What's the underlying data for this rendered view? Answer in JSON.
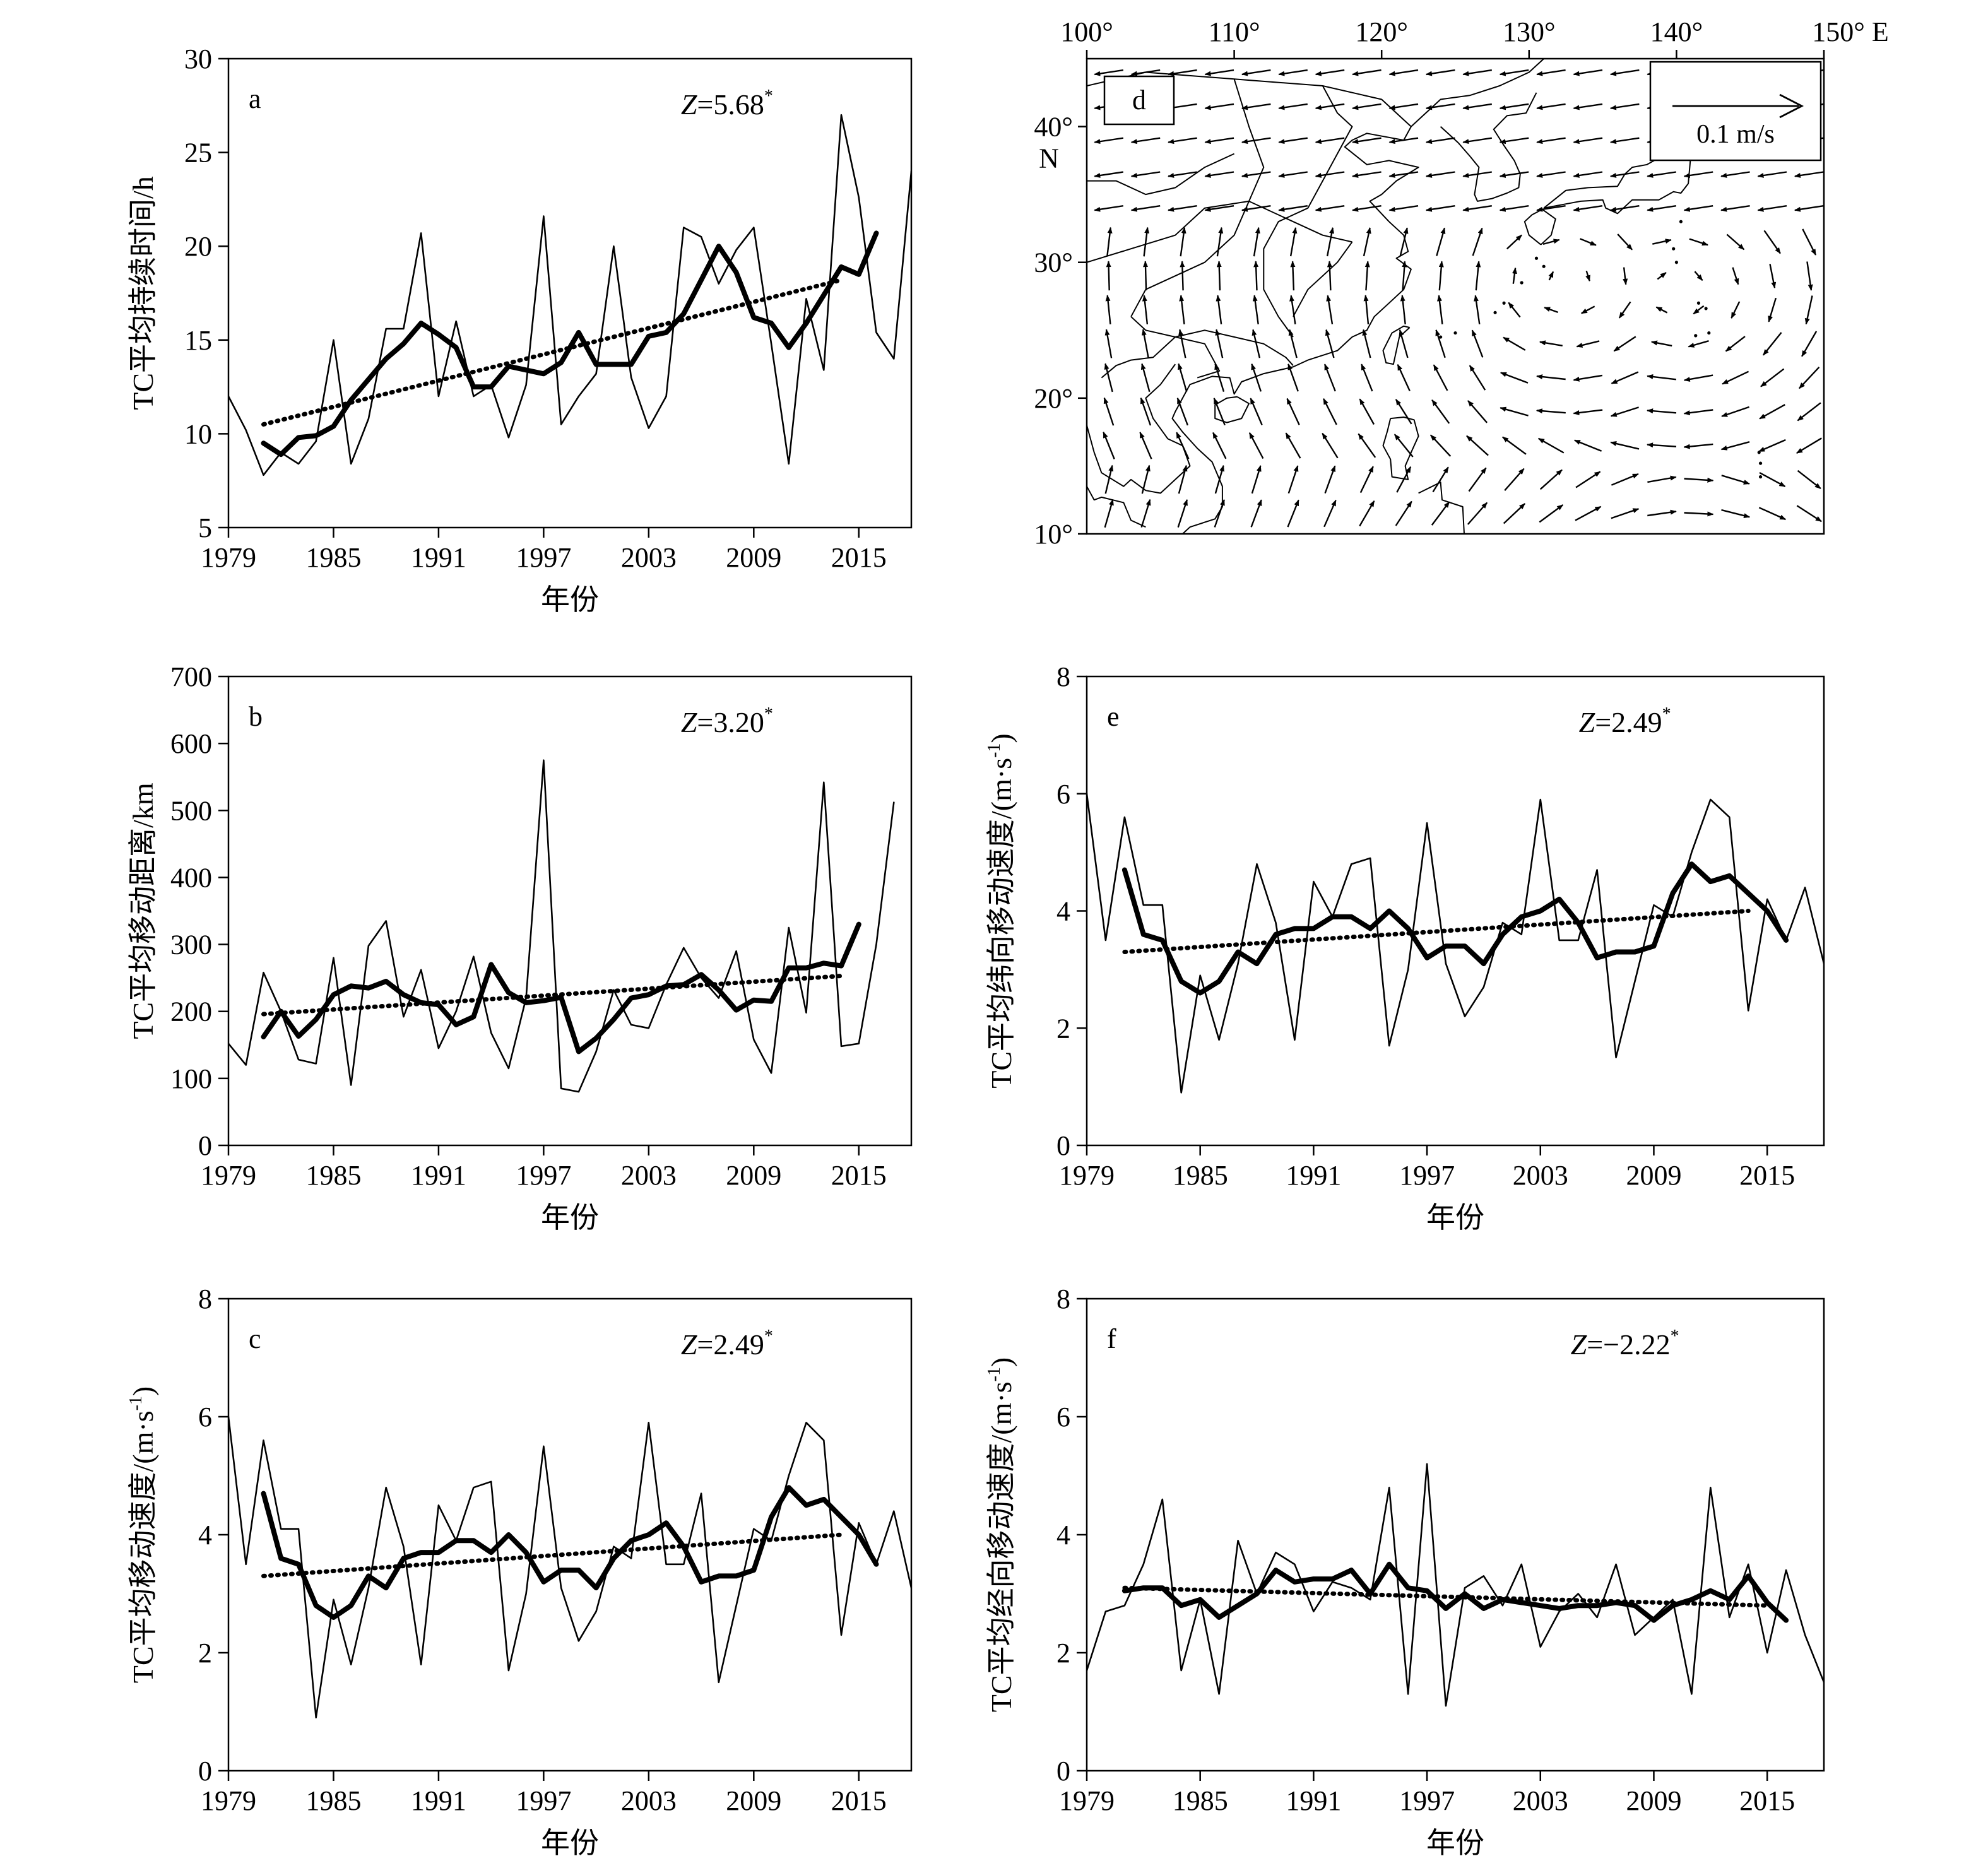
{
  "xlabel": "年份",
  "panel_d": {
    "label": "d",
    "lon_ticks": [
      "100°",
      "110°",
      "120°",
      "130°",
      "140°",
      "150° E"
    ],
    "lat_ticks": [
      "40°",
      "30°",
      "20°",
      "10°"
    ],
    "lat_unit": "N",
    "reference_vector_label": "0.1 m/s",
    "reference_vector_value": 0.1,
    "lon_range": [
      100,
      150
    ],
    "lat_range": [
      10,
      45
    ]
  },
  "chart_data": [
    {
      "type": "line",
      "panel": "a",
      "annotation_var": "Z",
      "annotation_value": "=5.68",
      "annotation_sup": "*",
      "ylabel": "TC平均持续时间/h",
      "xlabel": "年份",
      "ylim": [
        5,
        30
      ],
      "yticks": [
        5,
        10,
        15,
        20,
        25,
        30
      ],
      "xlim": [
        1979,
        2018
      ],
      "xticks": [
        1979,
        1985,
        1991,
        1997,
        2003,
        2009,
        2015
      ],
      "series": [
        {
          "style": "thin",
          "x_start": 1979,
          "values": [
            12.0,
            10.2,
            7.8,
            9.0,
            8.4,
            9.6,
            15.0,
            8.4,
            10.8,
            15.6,
            15.6,
            20.7,
            12.0,
            16.0,
            12.0,
            12.6,
            9.8,
            12.6,
            21.6,
            10.5,
            12.0,
            13.2,
            20.0,
            13.0,
            10.3,
            12.0,
            21.0,
            20.5,
            18.0,
            19.8,
            21.0,
            14.8,
            8.4,
            17.2,
            13.4,
            27.0,
            22.6,
            15.4,
            14.0,
            24.0
          ]
        },
        {
          "style": "thick",
          "x_start": 1981,
          "values": [
            9.5,
            8.9,
            9.8,
            9.9,
            10.4,
            11.8,
            12.9,
            14.0,
            14.8,
            15.9,
            15.3,
            14.6,
            12.5,
            12.5,
            13.6,
            13.4,
            13.2,
            13.8,
            15.4,
            13.7,
            13.7,
            13.7,
            15.2,
            15.4,
            16.4,
            18.2,
            20.0,
            18.6,
            16.2,
            15.9,
            14.6,
            15.9,
            17.4,
            18.9,
            18.5,
            20.7
          ]
        },
        {
          "style": "dotted-trend",
          "x": [
            1981,
            2014
          ],
          "values": [
            10.5,
            18.2
          ]
        }
      ]
    },
    {
      "type": "line",
      "panel": "b",
      "annotation_var": "Z",
      "annotation_value": "=3.20",
      "annotation_sup": "*",
      "ylabel": "TC平均移动距离/km",
      "xlabel": "年份",
      "ylim": [
        0,
        700
      ],
      "yticks": [
        0,
        100,
        200,
        300,
        400,
        500,
        600,
        700
      ],
      "xlim": [
        1979,
        2018
      ],
      "xticks": [
        1979,
        1985,
        1991,
        1997,
        2003,
        2009,
        2015
      ],
      "series": [
        {
          "style": "thin",
          "x_start": 1979,
          "values": [
            152,
            120,
            258,
            200,
            128,
            122,
            280,
            90,
            298,
            335,
            192,
            262,
            145,
            200,
            282,
            168,
            115,
            220,
            575,
            85,
            80,
            140,
            232,
            180,
            175,
            240,
            295,
            250,
            220,
            290,
            158,
            108,
            325,
            198,
            542,
            148,
            152,
            300,
            512
          ]
        },
        {
          "style": "thick",
          "x_start": 1981,
          "values": [
            162,
            200,
            163,
            188,
            225,
            238,
            235,
            245,
            225,
            213,
            210,
            180,
            192,
            270,
            228,
            213,
            216,
            221,
            140,
            160,
            188,
            220,
            225,
            238,
            240,
            255,
            232,
            202,
            217,
            215,
            265,
            265,
            272,
            268,
            330
          ]
        },
        {
          "style": "dotted-trend",
          "x": [
            1981,
            2014
          ],
          "values": [
            196,
            253
          ]
        }
      ]
    },
    {
      "type": "line",
      "panel": "c",
      "annotation_var": "Z",
      "annotation_value": "=2.49",
      "annotation_sup": "*",
      "ylabel": "TC平均移动速度/(m·s",
      "ylabel_sup": "-1",
      "ylabel_end": ")",
      "xlabel": "年份",
      "ylim": [
        0,
        8
      ],
      "yticks": [
        0,
        2,
        4,
        6,
        8
      ],
      "xlim": [
        1979,
        2018
      ],
      "xticks": [
        1979,
        1985,
        1991,
        1997,
        2003,
        2009,
        2015
      ],
      "series": [
        {
          "style": "thin",
          "x_start": 1979,
          "values": [
            6.0,
            3.5,
            5.6,
            4.1,
            4.1,
            0.9,
            2.9,
            1.8,
            3.1,
            4.8,
            3.8,
            1.8,
            4.5,
            3.9,
            4.8,
            4.9,
            1.7,
            3.0,
            5.5,
            3.1,
            2.2,
            2.7,
            3.8,
            3.6,
            5.9,
            3.5,
            3.5,
            4.7,
            1.5,
            2.8,
            4.1,
            3.9,
            5.0,
            5.9,
            5.6,
            2.3,
            4.2,
            3.5,
            4.4,
            3.1
          ]
        },
        {
          "style": "thick",
          "x_start": 1981,
          "values": [
            4.7,
            3.6,
            3.5,
            2.8,
            2.6,
            2.8,
            3.3,
            3.1,
            3.6,
            3.7,
            3.7,
            3.9,
            3.9,
            3.7,
            4.0,
            3.7,
            3.2,
            3.4,
            3.4,
            3.1,
            3.6,
            3.9,
            4.0,
            4.2,
            3.8,
            3.2,
            3.3,
            3.3,
            3.4,
            4.3,
            4.8,
            4.5,
            4.6,
            4.3,
            4.0,
            3.5
          ]
        },
        {
          "style": "dotted-trend",
          "x": [
            1981,
            2014
          ],
          "values": [
            3.3,
            4.0
          ]
        }
      ]
    },
    {
      "type": "line",
      "panel": "e",
      "annotation_var": "Z",
      "annotation_value": "=2.49",
      "annotation_sup": "*",
      "ylabel": "TC平均纬向移动速度/(m·s",
      "ylabel_sup": "-1",
      "ylabel_end": ")",
      "xlabel": "年份",
      "ylim": [
        0,
        8
      ],
      "yticks": [
        0,
        2,
        4,
        6,
        8
      ],
      "xlim": [
        1979,
        2018
      ],
      "xticks": [
        1979,
        1985,
        1991,
        1997,
        2003,
        2009,
        2015
      ],
      "series": [
        {
          "style": "thin",
          "x_start": 1979,
          "values": [
            6.0,
            3.5,
            5.6,
            4.1,
            4.1,
            0.9,
            2.9,
            1.8,
            3.1,
            4.8,
            3.8,
            1.8,
            4.5,
            3.9,
            4.8,
            4.9,
            1.7,
            3.0,
            5.5,
            3.1,
            2.2,
            2.7,
            3.8,
            3.6,
            5.9,
            3.5,
            3.5,
            4.7,
            1.5,
            2.8,
            4.1,
            3.9,
            5.0,
            5.9,
            5.6,
            2.3,
            4.2,
            3.5,
            4.4,
            3.1
          ]
        },
        {
          "style": "thick",
          "x_start": 1981,
          "values": [
            4.7,
            3.6,
            3.5,
            2.8,
            2.6,
            2.8,
            3.3,
            3.1,
            3.6,
            3.7,
            3.7,
            3.9,
            3.9,
            3.7,
            4.0,
            3.7,
            3.2,
            3.4,
            3.4,
            3.1,
            3.6,
            3.9,
            4.0,
            4.2,
            3.8,
            3.2,
            3.3,
            3.3,
            3.4,
            4.3,
            4.8,
            4.5,
            4.6,
            4.3,
            4.0,
            3.5
          ]
        },
        {
          "style": "dotted-trend",
          "x": [
            1981,
            2014
          ],
          "values": [
            3.3,
            4.0
          ]
        }
      ]
    },
    {
      "type": "line",
      "panel": "f",
      "annotation_var": "Z",
      "annotation_value": "=−2.22",
      "annotation_sup": "*",
      "ylabel": "TC平均经向移动速度/(m·s",
      "ylabel_sup": "-1",
      "ylabel_end": ")",
      "xlabel": "年份",
      "ylim": [
        0,
        8
      ],
      "yticks": [
        0,
        2,
        4,
        6,
        8
      ],
      "xlim": [
        1979,
        2018
      ],
      "xticks": [
        1979,
        1985,
        1991,
        1997,
        2003,
        2009,
        2015
      ],
      "series": [
        {
          "style": "thin",
          "x_start": 1979,
          "values": [
            1.7,
            2.7,
            2.8,
            3.5,
            4.6,
            1.7,
            2.9,
            1.3,
            3.9,
            3.0,
            3.7,
            3.5,
            2.7,
            3.2,
            3.1,
            2.9,
            4.8,
            1.3,
            5.2,
            1.1,
            3.1,
            3.3,
            2.8,
            3.5,
            2.1,
            2.7,
            3.0,
            2.6,
            3.5,
            2.3,
            2.6,
            2.9,
            1.3,
            4.8,
            2.6,
            3.5,
            2.0,
            3.4,
            2.3,
            1.5
          ]
        },
        {
          "style": "thick",
          "x_start": 1981,
          "values": [
            3.05,
            3.1,
            3.1,
            2.8,
            2.9,
            2.6,
            2.8,
            3.0,
            3.4,
            3.2,
            3.25,
            3.25,
            3.4,
            3.0,
            3.5,
            3.1,
            3.05,
            2.75,
            3.0,
            2.75,
            2.9,
            2.85,
            2.8,
            2.75,
            2.8,
            2.8,
            2.85,
            2.8,
            2.55,
            2.8,
            2.9,
            3.05,
            2.9,
            3.3,
            2.85,
            2.55
          ]
        },
        {
          "style": "dotted-trend",
          "x": [
            1981,
            2015
          ],
          "values": [
            3.1,
            2.8
          ]
        }
      ]
    }
  ]
}
